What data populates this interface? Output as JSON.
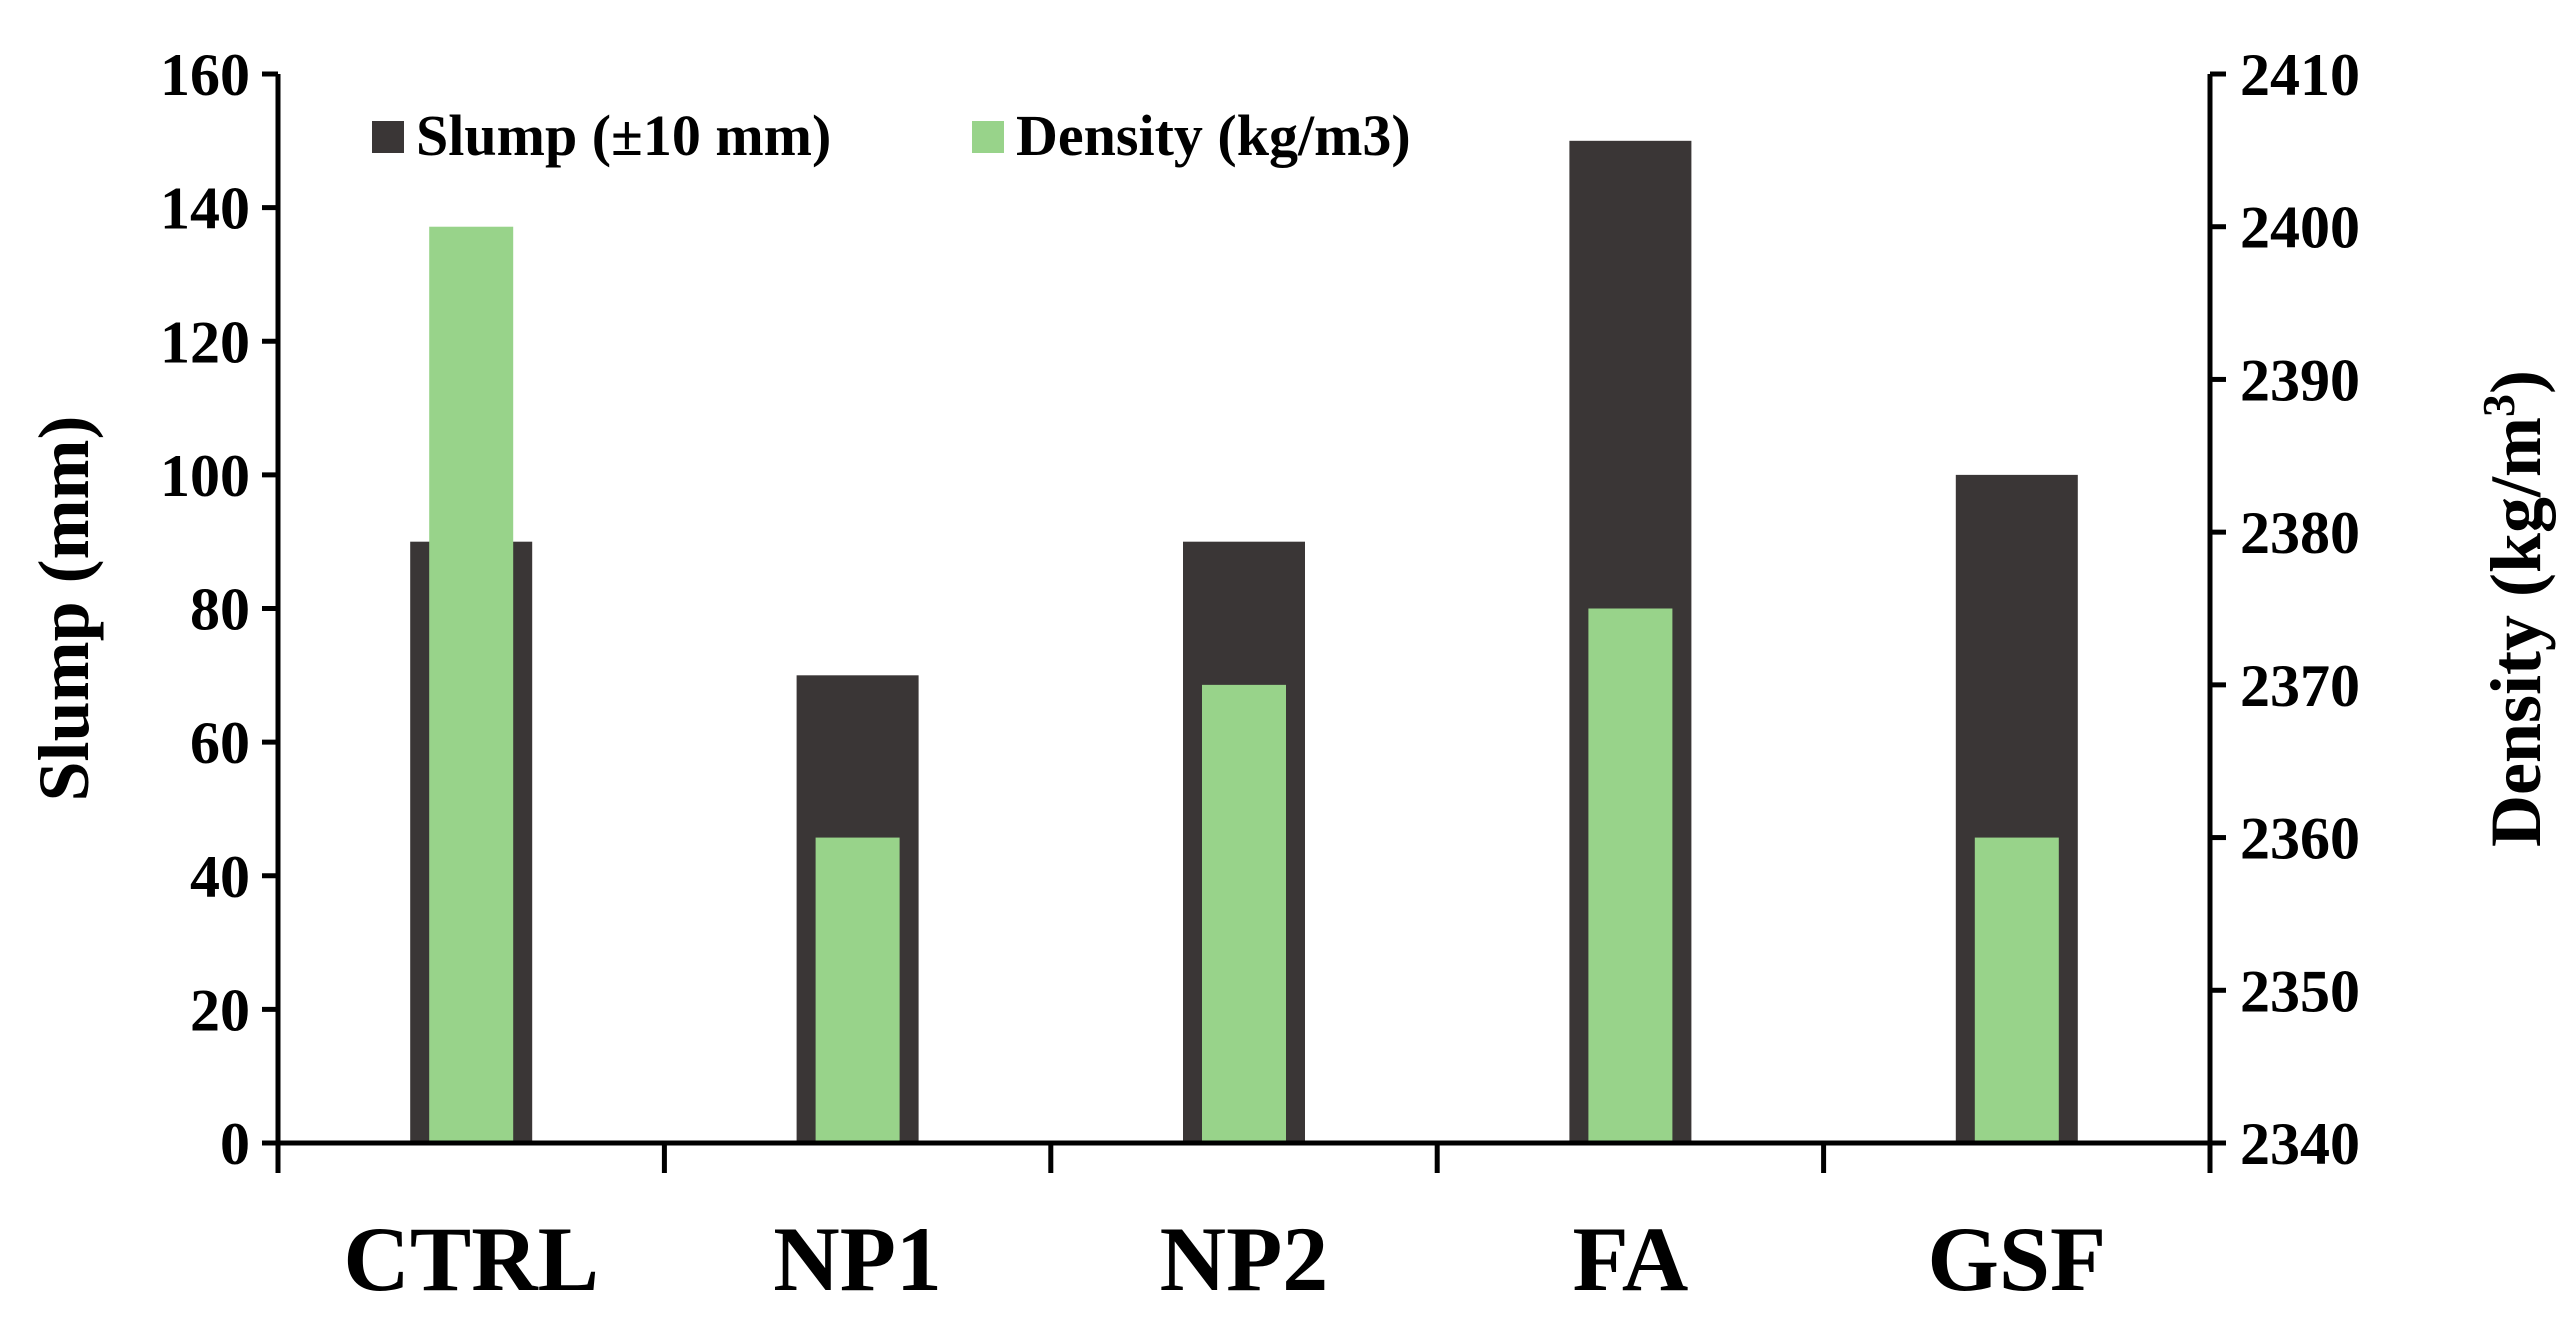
{
  "chart_data": {
    "type": "bar",
    "categories": [
      "CTRL",
      "NP1",
      "NP2",
      "FA",
      "GSF"
    ],
    "series": [
      {
        "name": "Slump (±10 mm)",
        "axis": "left",
        "values": [
          90,
          70,
          90,
          150,
          100
        ],
        "color": "#3a3636"
      },
      {
        "name": "Density (kg/m3)",
        "axis": "right",
        "values": [
          2400,
          2360,
          2370,
          2375,
          2360
        ],
        "color": "#98d38a"
      }
    ],
    "left_axis": {
      "title": "Slump (mm)",
      "min": 0,
      "max": 160,
      "ticks": [
        "0",
        "20",
        "40",
        "60",
        "80",
        "100",
        "120",
        "140",
        "160"
      ]
    },
    "right_axis": {
      "title_main": "Density (kg/m",
      "title_sup": "3",
      "title_end": ")",
      "min": 2340,
      "max": 2410,
      "ticks": [
        "2340",
        "2350",
        "2360",
        "2370",
        "2380",
        "2390",
        "2400",
        "2410"
      ]
    },
    "legend": {
      "placement": "top-left",
      "entries": [
        "Slump (±10 mm)",
        "Density (kg/m3)"
      ]
    },
    "grid": false
  }
}
